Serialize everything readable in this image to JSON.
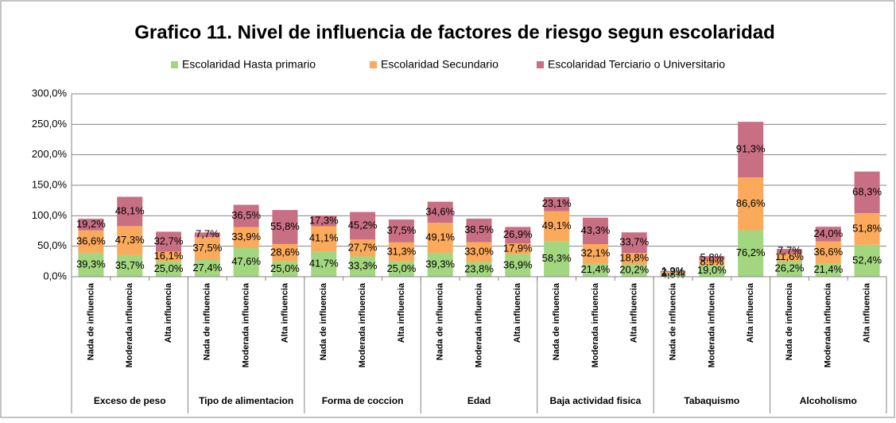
{
  "chart_data": {
    "type": "stacked_bar",
    "title": "Grafico 11. Nivel de influencia de factores de riesgo segun escolaridad",
    "groups": [
      "Exceso de peso",
      "Tipo de alimentacion",
      "Forma de coccion",
      "Edad",
      "Baja actividad fisica",
      "Tabaquismo",
      "Alcoholismo"
    ],
    "categories": [
      "Nada de influencia",
      "Moderada influencia",
      "Alta influencia",
      "Nada de influencia",
      "Moderada influencia",
      "Alta influencia",
      "Nada de influencia",
      "Moderada influencia",
      "Alta influencia",
      "Nada de influencia",
      "Moderada influencia",
      "Alta influencia",
      "Nada de influencia",
      "Moderada influencia",
      "Alta influencia",
      "Nada de influencia",
      "Moderada influencia",
      "Alta influencia",
      "Nada de influencia",
      "Moderada influencia",
      "Alta influencia"
    ],
    "series": [
      {
        "name": "Escolaridad Hasta primario",
        "color": "#a2d67f",
        "values": [
          39.3,
          35.7,
          25.0,
          27.4,
          47.6,
          25.0,
          41.7,
          33.3,
          25.0,
          39.3,
          23.8,
          36.9,
          58.3,
          21.4,
          20.2,
          4.8,
          19.0,
          76.2,
          26.2,
          21.4,
          52.4
        ],
        "value_labels": [
          "39,3%",
          "35,7%",
          "25,0%",
          "27,4%",
          "47,6%",
          "25,0%",
          "41,7%",
          "33,3%",
          "25,0%",
          "39,3%",
          "23,8%",
          "36,9%",
          "58,3%",
          "21,4%",
          "20,2%",
          "4,8%",
          "19,0%",
          "76,2%",
          "26,2%",
          "21,4%",
          "52,4%"
        ]
      },
      {
        "name": "Escolaridad Secundario",
        "color": "#fba95b",
        "values": [
          36.6,
          47.3,
          16.1,
          37.5,
          33.9,
          28.6,
          41.1,
          27.7,
          31.3,
          49.1,
          33.0,
          17.9,
          49.1,
          32.1,
          18.8,
          2.7,
          8.9,
          86.6,
          11.6,
          36.6,
          51.8
        ],
        "value_labels": [
          "36,6%",
          "47,3%",
          "16,1%",
          "37,5%",
          "33,9%",
          "28,6%",
          "41,1%",
          "27,7%",
          "31,3%",
          "49,1%",
          "33,0%",
          "17,9%",
          "49,1%",
          "32,1%",
          "18,8%",
          "2,7%",
          "8,9%",
          "86,6%",
          "11,6%",
          "36,6%",
          "51,8%"
        ]
      },
      {
        "name": "Escolaridad Terciario o Universitario",
        "color": "#c96f84",
        "values": [
          19.2,
          48.1,
          32.7,
          7.7,
          36.5,
          55.8,
          17.3,
          45.2,
          37.5,
          34.6,
          38.5,
          26.9,
          23.1,
          43.3,
          33.7,
          1.9,
          5.8,
          91.3,
          7.7,
          24.0,
          68.3
        ],
        "value_labels": [
          "19,2%",
          "48,1%",
          "32,7%",
          "7,7%",
          "36,5%",
          "55,8%",
          "17,3%",
          "45,2%",
          "37,5%",
          "34,6%",
          "38,5%",
          "26,9%",
          "23,1%",
          "43,3%",
          "33,7%",
          "1,9%",
          "5,8%",
          "91,3%",
          "7,7%",
          "24,0%",
          "68,3%"
        ]
      }
    ],
    "ylim": [
      0,
      300
    ],
    "yticks": [
      {
        "value": 0,
        "label": "0,0%"
      },
      {
        "value": 50,
        "label": "50,0%"
      },
      {
        "value": 100,
        "label": "100,0%"
      },
      {
        "value": 150,
        "label": "150,0%"
      },
      {
        "value": 200,
        "label": "200,0%"
      },
      {
        "value": 250,
        "label": "250,0%"
      },
      {
        "value": 300,
        "label": "300,0%"
      }
    ],
    "grid": true,
    "legend": "top"
  }
}
